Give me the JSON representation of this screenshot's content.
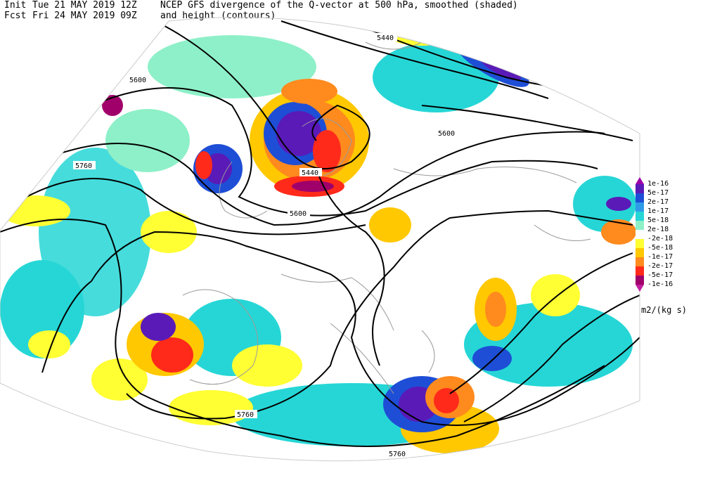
{
  "header": {
    "init_label": "Init",
    "init_time": "Tue 21 MAY 2019 12Z",
    "fcst_label": "Fcst",
    "fcst_time": "Fri 24 MAY 2019 09Z",
    "title_line1": "NCEP GFS divergence of the Q-vector at 500 hPa, smoothed (shaded)",
    "title_line2": "and height (contours)"
  },
  "contour_labels": [
    "5440",
    "5600",
    "5760",
    "5440",
    "5600",
    "5600",
    "5760",
    "5760",
    "5760"
  ],
  "colorbar": {
    "labels": [
      "1e-16",
      "5e-17",
      "2e-17",
      "1e-17",
      "5e-18",
      "2e-18",
      "-2e-18",
      "-5e-18",
      "-1e-17",
      "-2e-17",
      "-5e-17",
      "-1e-16"
    ],
    "colors": [
      "#9a00a8",
      "#5a1ab8",
      "#1e4ed6",
      "#2f9be8",
      "#26d6d6",
      "#8ef0c8",
      "#ffffff",
      "#ffff33",
      "#ffc800",
      "#ff8a1e",
      "#ff2a1a",
      "#a0006a",
      "#c21ea0"
    ],
    "units": "m2/(kg s)"
  },
  "palette": {
    "contour": "#000000",
    "coast": "#9a9a9a"
  }
}
